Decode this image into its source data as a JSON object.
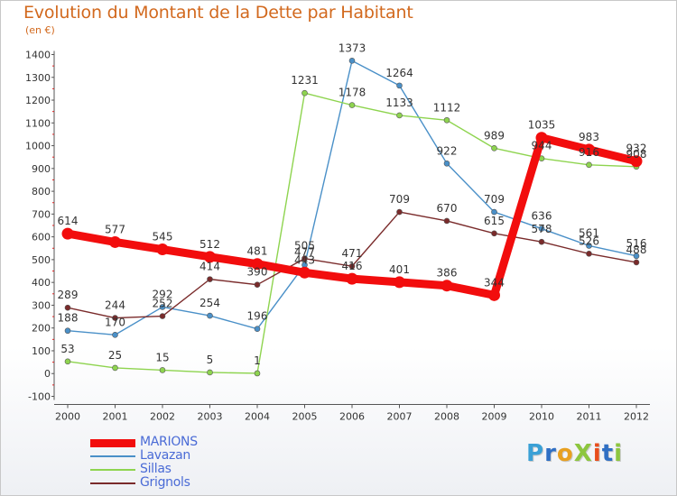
{
  "title": "Evolution du Montant de la Dette par Habitant",
  "subtitle": "(en €)",
  "logo": {
    "text": "ProXiti",
    "letters": [
      {
        "char": "P",
        "color": "#3aa0d6"
      },
      {
        "char": "r",
        "color": "#2f6fc4"
      },
      {
        "char": "o",
        "color": "#e8a020"
      },
      {
        "char": "X",
        "color": "#8dc63f"
      },
      {
        "char": "i",
        "color": "#e84d1c"
      },
      {
        "char": "t",
        "color": "#2f6fc4"
      },
      {
        "char": "i",
        "color": "#8dc63f"
      }
    ]
  },
  "chart_data": {
    "type": "line",
    "title": "Evolution du Montant de la Dette par Habitant",
    "subtitle": "(en €)",
    "xlabel": "",
    "ylabel": "",
    "x": [
      2000,
      2001,
      2002,
      2003,
      2004,
      2005,
      2006,
      2007,
      2008,
      2009,
      2010,
      2011,
      2012
    ],
    "ylim": [
      -100,
      1400
    ],
    "yticks": [
      -100,
      0,
      100,
      200,
      300,
      400,
      500,
      600,
      700,
      800,
      900,
      1000,
      1100,
      1200,
      1300,
      1400
    ],
    "grid": false,
    "legend_position": "bottom-left",
    "series": [
      {
        "name": "MARIONS",
        "color": "#f20d0d",
        "emphasis": true,
        "values": [
          614,
          577,
          545,
          512,
          481,
          443,
          416,
          401,
          386,
          344,
          1035,
          983,
          932
        ],
        "labels": [
          "614",
          "577",
          "545",
          "512",
          "481",
          "443",
          "416",
          "401",
          "386",
          "344",
          "1035",
          "983",
          "932"
        ]
      },
      {
        "name": "Lavazan",
        "color": "#4a90c8",
        "emphasis": false,
        "values": [
          188,
          170,
          292,
          254,
          196,
          477,
          1373,
          1264,
          922,
          709,
          636,
          561,
          516
        ],
        "labels": [
          "188",
          "170",
          "292",
          "254",
          "196",
          "477",
          "1373",
          "1264",
          "922",
          "709",
          "636",
          "561",
          "516"
        ]
      },
      {
        "name": "Sillas",
        "color": "#8ed44f",
        "emphasis": false,
        "values": [
          53,
          25,
          15,
          5,
          1,
          1231,
          1178,
          1133,
          1112,
          989,
          944,
          916,
          908
        ],
        "labels": [
          "53",
          "25",
          "15",
          "5",
          "1",
          "1231",
          "1178",
          "1133",
          "1112",
          "989",
          "944",
          "916",
          "908"
        ]
      },
      {
        "name": "Grignols",
        "color": "#7a2b2b",
        "emphasis": false,
        "values": [
          289,
          244,
          252,
          414,
          390,
          505,
          471,
          709,
          670,
          615,
          578,
          526,
          488
        ],
        "labels": [
          "289",
          "244",
          "252",
          "414",
          "390",
          "505",
          "471",
          "709",
          "670",
          "615",
          "578",
          "526",
          "488"
        ]
      }
    ]
  }
}
